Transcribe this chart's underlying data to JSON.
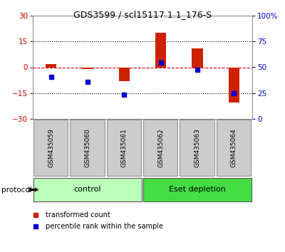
{
  "title": "GDS3599 / scl15117.1.1_176-S",
  "samples": [
    "GSM435059",
    "GSM435060",
    "GSM435061",
    "GSM435062",
    "GSM435063",
    "GSM435064"
  ],
  "red_bars": [
    2.0,
    -1.2,
    -8.0,
    20.0,
    11.0,
    -20.5
  ],
  "blue_dots": [
    -5.5,
    -8.5,
    -16.0,
    2.5,
    -1.5,
    -15.0
  ],
  "ylim_left": [
    -30,
    30
  ],
  "ylim_right": [
    0,
    100
  ],
  "protocol_groups": [
    {
      "label": "control",
      "indices": [
        0,
        1,
        2
      ],
      "color": "#bbffbb"
    },
    {
      "label": "Eset depletion",
      "indices": [
        3,
        4,
        5
      ],
      "color": "#44dd44"
    }
  ],
  "protocol_label": "protocol",
  "red_label": "transformed count",
  "blue_label": "percentile rank within the sample",
  "red_color": "#cc2200",
  "blue_color": "#0000cc",
  "dashed_zero_color": "#cc0000",
  "dotted_line_color": "#000000",
  "bg_color": "#ffffff",
  "plot_bg": "#ffffff",
  "tick_color_left": "#cc0000",
  "tick_color_right": "#0000cc",
  "sample_box_color": "#cccccc",
  "sample_box_edge": "#888888"
}
